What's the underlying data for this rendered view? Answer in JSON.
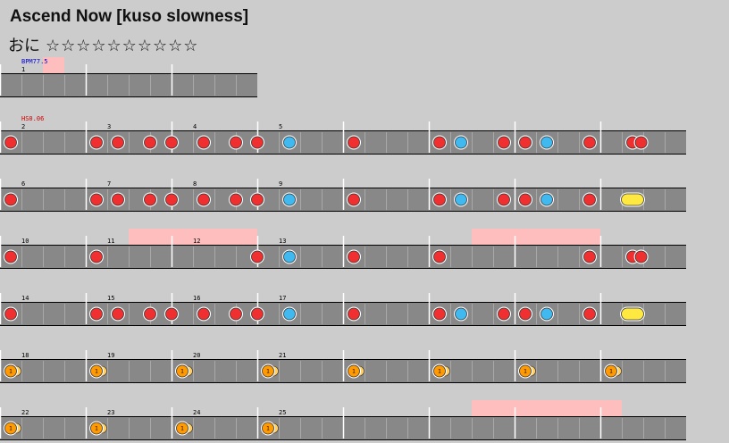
{
  "song": {
    "title": "Ascend Now [kuso slowness]",
    "course": "おに",
    "stars": "☆☆☆☆☆☆☆☆☆☆"
  },
  "colors": {
    "background": "#cccccc",
    "lane": "#888888",
    "don": "#f03030",
    "ka": "#40b8f0",
    "drumroll": "#ffe840",
    "balloon": "#ff9a00",
    "gogo": "#ffbebe",
    "bpm_text": "#0000cc",
    "hs_text": "#cc0000"
  },
  "annotations": [
    {
      "type": "bpm",
      "text": "BPM77.5",
      "row": 0
    },
    {
      "type": "hs",
      "text": "HS0.06",
      "row": 1
    }
  ],
  "rows": [
    {
      "length": 3,
      "measures": [
        1
      ],
      "gogo": [
        [
          2,
          3
        ]
      ],
      "notes": []
    },
    {
      "length": 8,
      "measures": [
        2,
        3,
        4,
        5
      ],
      "gogo": [],
      "notes": [
        {
          "t": "don",
          "p": 0.5
        },
        {
          "t": "don",
          "p": 4.5
        },
        {
          "t": "don",
          "p": 5.5
        },
        {
          "t": "don",
          "p": 7
        },
        {
          "t": "don",
          "p": 8
        },
        {
          "t": "don",
          "p": 9.5
        },
        {
          "t": "don",
          "p": 11
        },
        {
          "t": "don",
          "p": 12
        },
        {
          "t": "ka",
          "p": 13.5
        },
        {
          "t": "don",
          "p": 16.5
        },
        {
          "t": "don",
          "p": 20.5
        },
        {
          "t": "ka",
          "p": 21.5
        },
        {
          "t": "don",
          "p": 23.5
        },
        {
          "t": "don",
          "p": 24.5
        },
        {
          "t": "ka",
          "p": 25.5
        },
        {
          "t": "don",
          "p": 27.5
        },
        {
          "t": "don",
          "p": 29.5
        },
        {
          "t": "don",
          "p": 29.9
        }
      ]
    },
    {
      "length": 8,
      "measures": [
        6,
        7,
        8,
        9
      ],
      "gogo": [],
      "notes": [
        {
          "t": "don",
          "p": 0.5
        },
        {
          "t": "don",
          "p": 4.5
        },
        {
          "t": "don",
          "p": 5.5
        },
        {
          "t": "don",
          "p": 7
        },
        {
          "t": "don",
          "p": 8
        },
        {
          "t": "don",
          "p": 9.5
        },
        {
          "t": "don",
          "p": 11
        },
        {
          "t": "don",
          "p": 12
        },
        {
          "t": "ka",
          "p": 13.5
        },
        {
          "t": "don",
          "p": 16.5
        },
        {
          "t": "don",
          "p": 20.5
        },
        {
          "t": "ka",
          "p": 21.5
        },
        {
          "t": "don",
          "p": 23.5
        },
        {
          "t": "don",
          "p": 24.5
        },
        {
          "t": "ka",
          "p": 25.5
        },
        {
          "t": "don",
          "p": 27.5
        },
        {
          "t": "roll",
          "p": 29.25,
          "e": 29.75
        }
      ]
    },
    {
      "length": 8,
      "measures": [
        10,
        11,
        12,
        13
      ],
      "gogo": [
        [
          6,
          12
        ],
        [
          22,
          28
        ]
      ],
      "notes": [
        {
          "t": "don",
          "p": 0.5
        },
        {
          "t": "don",
          "p": 4.5
        },
        {
          "t": "don",
          "p": 12
        },
        {
          "t": "ka",
          "p": 13.5
        },
        {
          "t": "don",
          "p": 16.5
        },
        {
          "t": "don",
          "p": 20.5
        },
        {
          "t": "don",
          "p": 27.5
        },
        {
          "t": "don",
          "p": 29.5
        },
        {
          "t": "don",
          "p": 29.9
        }
      ]
    },
    {
      "length": 8,
      "measures": [
        14,
        15,
        16,
        17
      ],
      "gogo": [],
      "notes": [
        {
          "t": "don",
          "p": 0.5
        },
        {
          "t": "don",
          "p": 4.5
        },
        {
          "t": "don",
          "p": 5.5
        },
        {
          "t": "don",
          "p": 7
        },
        {
          "t": "don",
          "p": 8
        },
        {
          "t": "don",
          "p": 9.5
        },
        {
          "t": "don",
          "p": 11
        },
        {
          "t": "don",
          "p": 12
        },
        {
          "t": "ka",
          "p": 13.5
        },
        {
          "t": "don",
          "p": 16.5
        },
        {
          "t": "don",
          "p": 20.5
        },
        {
          "t": "ka",
          "p": 21.5
        },
        {
          "t": "don",
          "p": 23.5
        },
        {
          "t": "don",
          "p": 24.5
        },
        {
          "t": "ka",
          "p": 25.5
        },
        {
          "t": "don",
          "p": 27.5
        },
        {
          "t": "roll",
          "p": 29.25,
          "e": 29.75
        }
      ]
    },
    {
      "length": 8,
      "measures": [
        18,
        19,
        20,
        21
      ],
      "gogo": [],
      "notes": [
        {
          "t": "balloon",
          "p": 0.5,
          "n": "1"
        },
        {
          "t": "balloon",
          "p": 4.5,
          "n": "1"
        },
        {
          "t": "balloon",
          "p": 8.5,
          "n": "1"
        },
        {
          "t": "balloon",
          "p": 12.5,
          "n": "1"
        },
        {
          "t": "balloon",
          "p": 16.5,
          "n": "1"
        },
        {
          "t": "balloon",
          "p": 20.5,
          "n": "1"
        },
        {
          "t": "balloon",
          "p": 24.5,
          "n": "1"
        },
        {
          "t": "balloon",
          "p": 28.5,
          "n": "1"
        }
      ]
    },
    {
      "length": 8,
      "measures": [
        22,
        23,
        24,
        25
      ],
      "gogo": [
        [
          22,
          29
        ]
      ],
      "notes": [
        {
          "t": "balloon",
          "p": 0.5,
          "n": "1"
        },
        {
          "t": "balloon",
          "p": 4.5,
          "n": "1"
        },
        {
          "t": "balloon",
          "p": 8.5,
          "n": "1"
        },
        {
          "t": "balloon",
          "p": 12.5,
          "n": "1"
        }
      ]
    }
  ]
}
